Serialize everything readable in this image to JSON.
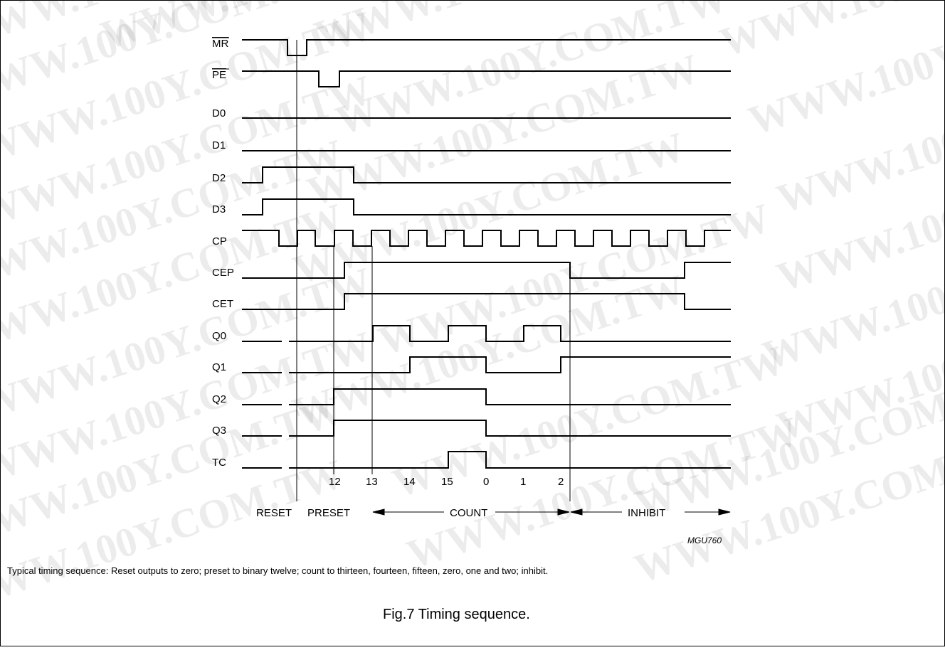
{
  "watermark": "WWW.100Y.COM.TW",
  "signals": [
    {
      "id": "mr",
      "label": "MR",
      "overline": true
    },
    {
      "id": "pe",
      "label": "PE",
      "overline": true
    },
    {
      "id": "d0",
      "label": "D0",
      "overline": false
    },
    {
      "id": "d1",
      "label": "D1",
      "overline": false
    },
    {
      "id": "d2",
      "label": "D2",
      "overline": false
    },
    {
      "id": "d3",
      "label": "D3",
      "overline": false
    },
    {
      "id": "cp",
      "label": "CP",
      "overline": false
    },
    {
      "id": "cep",
      "label": "CEP",
      "overline": false
    },
    {
      "id": "cet",
      "label": "CET",
      "overline": false
    },
    {
      "id": "q0",
      "label": "Q0",
      "overline": false
    },
    {
      "id": "q1",
      "label": "Q1",
      "overline": false
    },
    {
      "id": "q2",
      "label": "Q2",
      "overline": false
    },
    {
      "id": "q3",
      "label": "Q3",
      "overline": false
    },
    {
      "id": "tc",
      "label": "TC",
      "overline": false
    }
  ],
  "count_ticks": [
    "12",
    "13",
    "14",
    "15",
    "0",
    "1",
    "2"
  ],
  "phases": {
    "reset": "RESET",
    "preset": "PRESET",
    "count": "COUNT",
    "inhibit": "INHIBIT"
  },
  "figure_code": "MGU760",
  "caption": "Typical timing sequence: Reset outputs to zero; preset to binary twelve; count to thirteen, fourteen, fifteen, zero, one and two; inhibit.",
  "figure_title": "Fig.7  Timing sequence."
}
